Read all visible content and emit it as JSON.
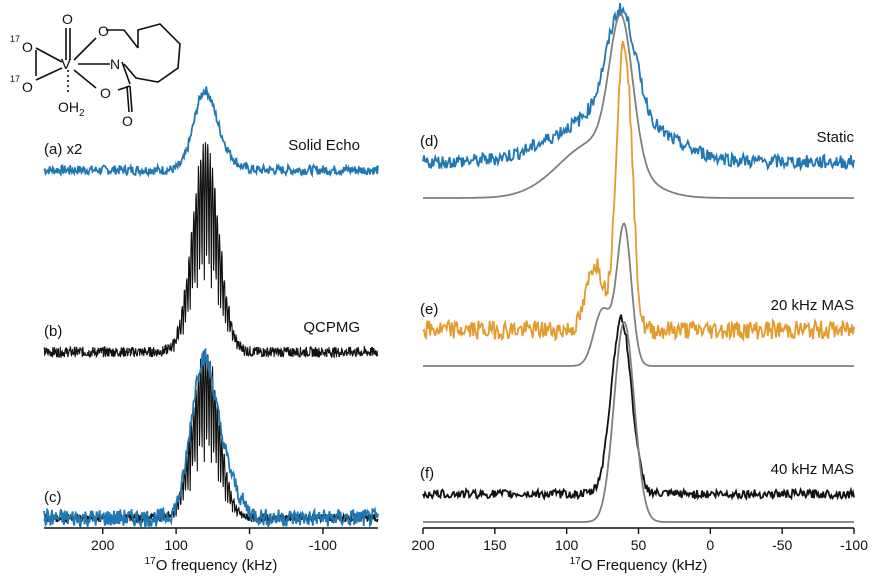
{
  "molecule": {
    "atoms": [
      "17O",
      "17O",
      "O",
      "V",
      "N",
      "O",
      "O",
      "OH2",
      "O"
    ],
    "iso": "17",
    "water": "OH",
    "water_sub": "2"
  },
  "colors": {
    "blue": "#1f77b4",
    "black": "#111111",
    "orange": "#e39b2d",
    "gray": "#7f7f7f"
  },
  "chart_data": [
    {
      "type": "line",
      "panel": "left",
      "xlabel": "17O frequency (kHz)",
      "xlabel_sup": "17",
      "xlabel_rest": "O frequency (kHz)",
      "xlim": [
        280,
        -175
      ],
      "xticks": [
        200,
        100,
        0,
        -100
      ],
      "tick_labels": [
        "200",
        "100",
        "0",
        "-100"
      ],
      "traces": [
        {
          "id": "a",
          "panel_label": "(a) x2",
          "right_label": "Solid Echo",
          "color": "#1f77b4",
          "peaks": [
            [
              63,
              0.8,
              14
            ],
            [
              45,
              0.3,
              18
            ]
          ],
          "noise": 0.12
        },
        {
          "id": "b",
          "panel_label": "(b)",
          "right_label": "QCPMG",
          "color": "#111111",
          "spikelets": true,
          "peaks": [
            [
              60,
              1.0,
              18
            ]
          ],
          "noise": 0.05
        },
        {
          "id": "c1",
          "panel_label": "(c)",
          "right_label": "",
          "color": "#111111",
          "spikelets": true,
          "peaks": [
            [
              60,
              1.0,
              18
            ]
          ],
          "noise": 0.05
        },
        {
          "id": "c2",
          "panel_label": "",
          "right_label": "",
          "color": "#1f77b4",
          "peaks": [
            [
              65,
              0.9,
              16
            ],
            [
              40,
              0.35,
              20
            ]
          ],
          "noise": 0.12
        }
      ]
    },
    {
      "type": "line",
      "panel": "right",
      "xlabel": "17O Frequency (kHz)",
      "xlabel_sup": "17",
      "xlabel_rest": "O Frequency (kHz)",
      "xlim": [
        200,
        -100
      ],
      "xticks": [
        200,
        150,
        100,
        50,
        0,
        -50,
        -100
      ],
      "tick_labels": [
        "200",
        "150",
        "100",
        "50",
        "0",
        "-50",
        "-100"
      ],
      "traces": [
        {
          "id": "d",
          "panel_label": "(d)",
          "right_label": "Static",
          "color": "#1f77b4",
          "peaks": [
            [
              62,
              0.75,
              10
            ],
            [
              70,
              0.35,
              35
            ]
          ],
          "noise": 0.1
        },
        {
          "id": "d-sim",
          "panel_label": "",
          "right_label": "",
          "color": "#7f7f7f",
          "peaks": [
            [
              62,
              1.0,
              8
            ],
            [
              80,
              0.4,
              25
            ]
          ],
          "noise": 0.0
        },
        {
          "id": "e",
          "panel_label": "(e)",
          "right_label": "20 kHz MAS",
          "color": "#e39b2d",
          "peaks": [
            [
              63,
              1.0,
              4
            ],
            [
              57,
              1.0,
              4
            ],
            [
              80,
              0.35,
              6
            ]
          ],
          "noise": 0.1
        },
        {
          "id": "e-sim",
          "panel_label": "",
          "right_label": "",
          "color": "#7f7f7f",
          "peaks": [
            [
              60,
              1.0,
              5
            ],
            [
              75,
              0.4,
              6
            ]
          ],
          "noise": 0.0
        },
        {
          "id": "f",
          "panel_label": "(f)",
          "right_label": "40 kHz MAS",
          "color": "#111111",
          "peaks": [
            [
              62,
              1.0,
              7
            ]
          ],
          "noise": 0.05
        },
        {
          "id": "f-sim",
          "panel_label": "",
          "right_label": "",
          "color": "#7f7f7f",
          "peaks": [
            [
              60,
              1.0,
              7
            ]
          ],
          "noise": 0.0
        }
      ]
    }
  ]
}
